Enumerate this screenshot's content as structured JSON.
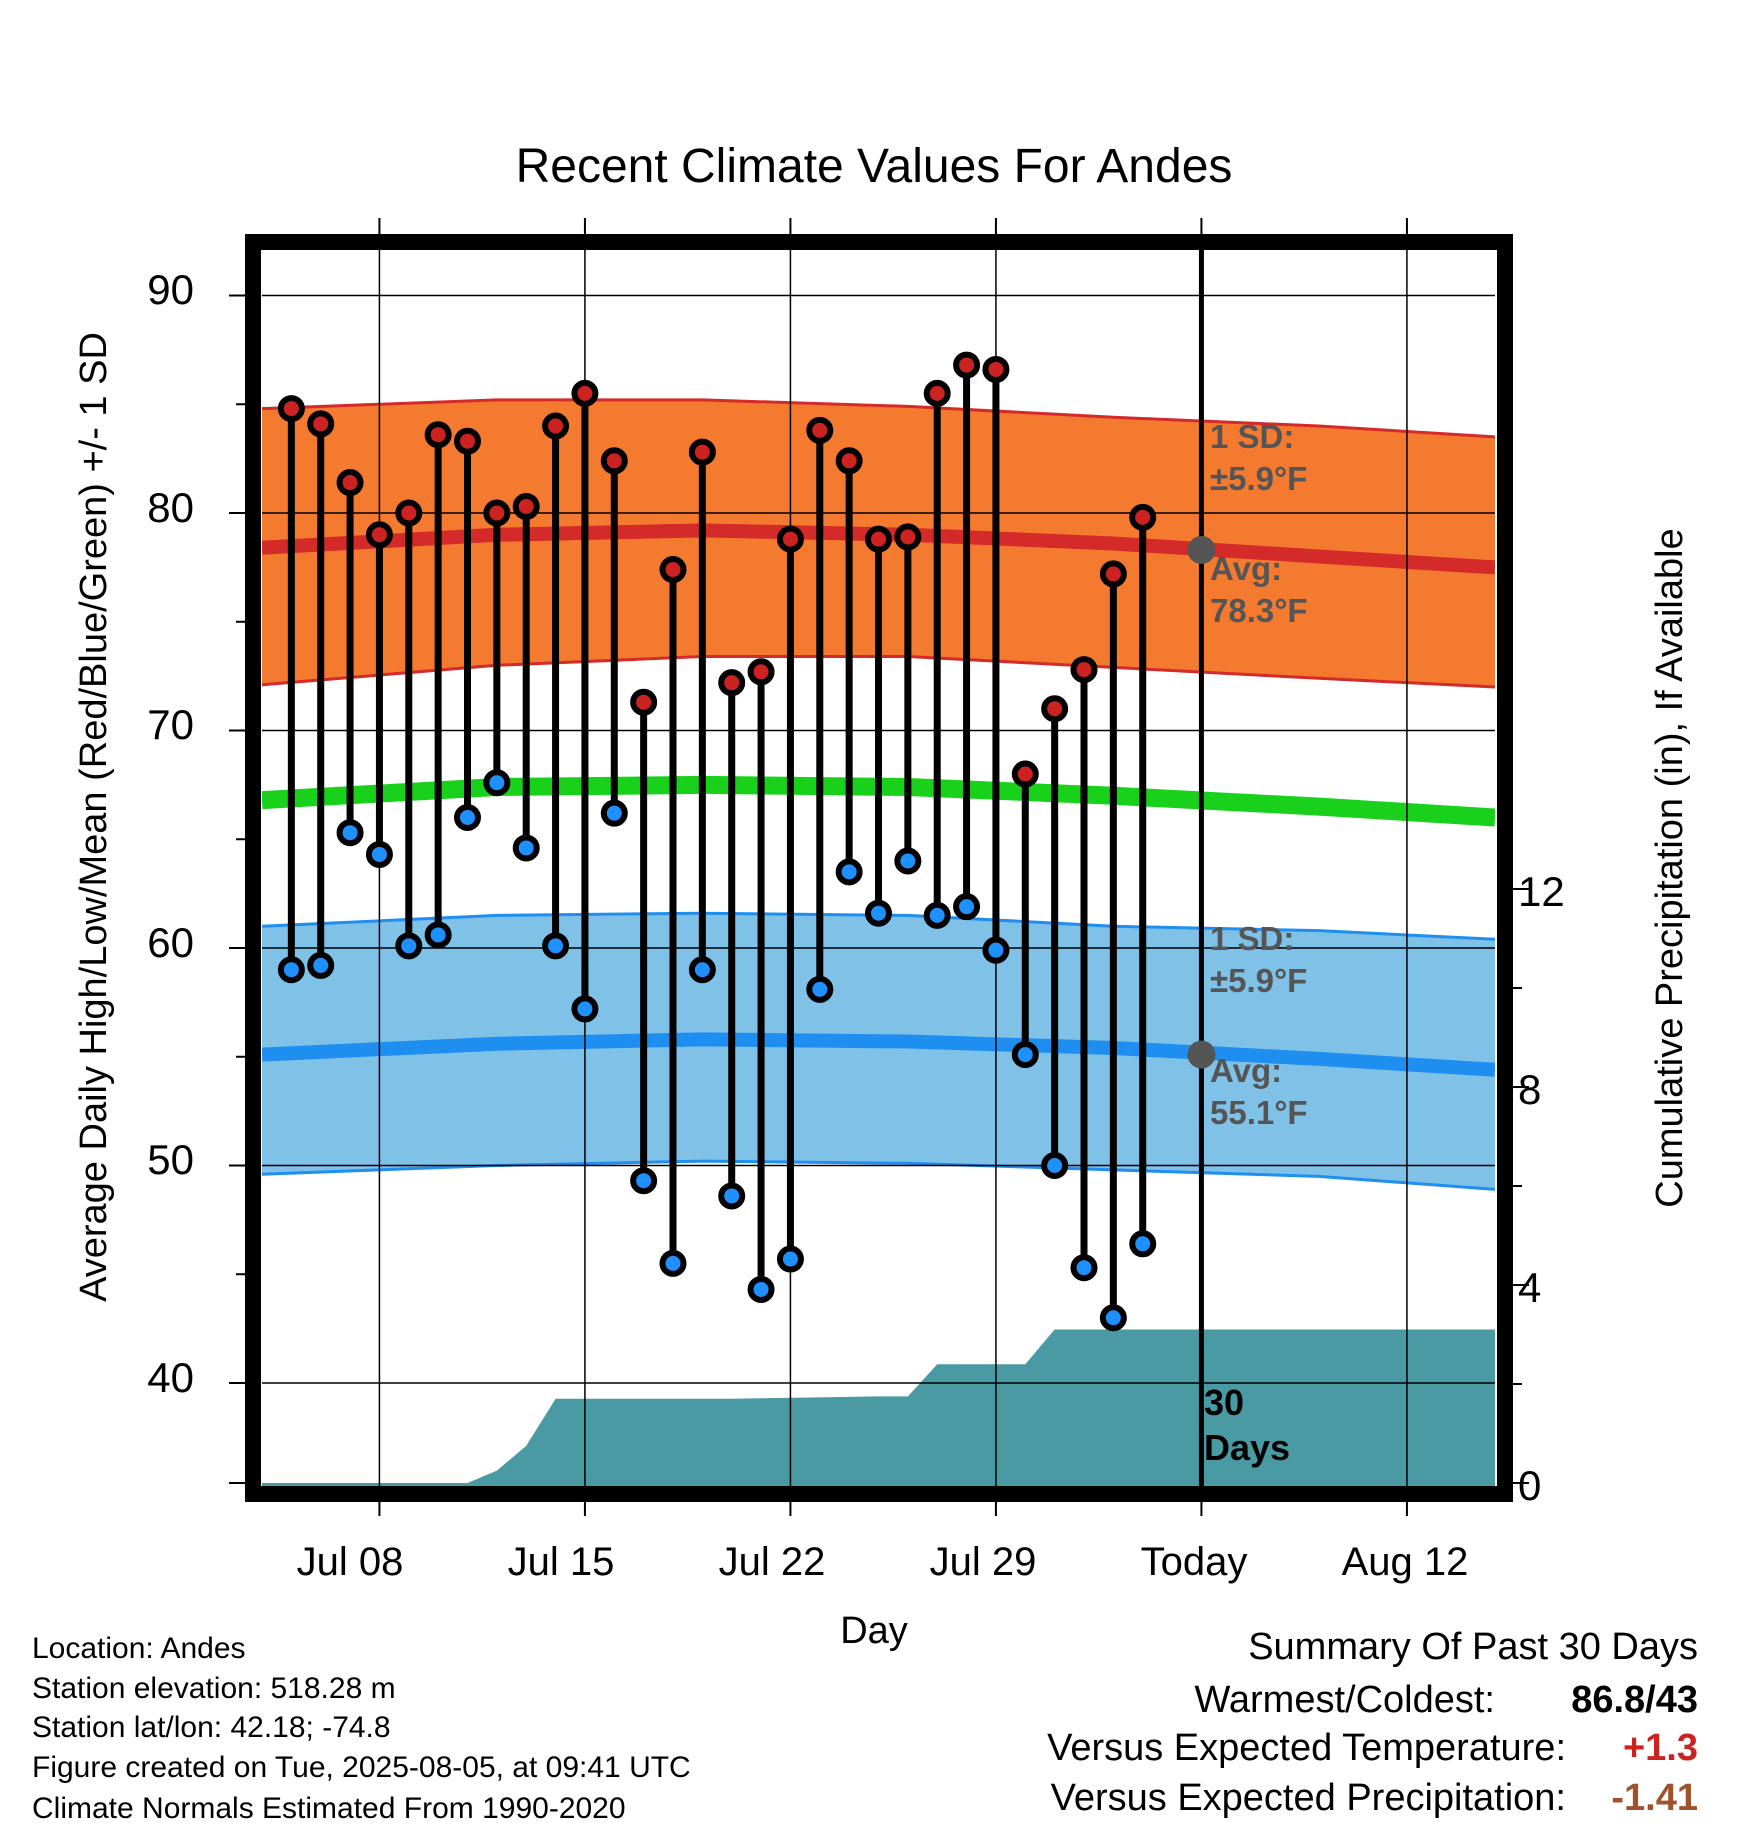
{
  "chart_data": {
    "type": "line",
    "title": "Recent Climate Values For Andes",
    "xlabel": "Day",
    "ylabel": "Average Daily High/Low/Mean (Red/Blue/Green) +/- 1 SD",
    "y2label": "Cumulative Precipitation (in), If Available",
    "yticks": [
      "90",
      "80",
      "70",
      "60",
      "50",
      "40"
    ],
    "ylim": [
      35,
      91
    ],
    "y2ticks": [
      "12",
      "8",
      "4",
      "0"
    ],
    "y2lim": [
      0,
      12
    ],
    "xtick_labels": [
      "Jul 08",
      "Jul 15",
      "Jul 22",
      "Jul 29",
      "Today",
      "Aug 12"
    ],
    "x_days": [
      "Jul 05",
      "Jul 06",
      "Jul 07",
      "Jul 08",
      "Jul 09",
      "Jul 10",
      "Jul 11",
      "Jul 12",
      "Jul 13",
      "Jul 14",
      "Jul 15",
      "Jul 16",
      "Jul 17",
      "Jul 18",
      "Jul 19",
      "Jul 20",
      "Jul 21",
      "Jul 22",
      "Jul 23",
      "Jul 24",
      "Jul 25",
      "Jul 26",
      "Jul 27",
      "Jul 28",
      "Jul 29",
      "Jul 30",
      "Jul 31",
      "Aug 01",
      "Aug 02",
      "Aug 03",
      "Aug 04"
    ],
    "x_range": [
      "Jul 04",
      "Aug 15"
    ],
    "highs": [
      84.8,
      84.1,
      81.4,
      79.0,
      80.0,
      83.6,
      83.3,
      80.0,
      80.3,
      84.0,
      85.5,
      82.4,
      71.3,
      77.4,
      82.8,
      72.2,
      72.7,
      78.8,
      83.8,
      82.4,
      78.8,
      78.9,
      85.5,
      86.8,
      86.6,
      68.0,
      71.0,
      72.8,
      77.2,
      79.8,
      null
    ],
    "lows": [
      59.0,
      59.2,
      65.3,
      64.3,
      60.1,
      60.6,
      66.0,
      67.6,
      64.6,
      60.1,
      57.2,
      66.2,
      49.3,
      45.5,
      59.0,
      48.6,
      44.3,
      45.7,
      58.1,
      63.5,
      61.6,
      64.0,
      61.5,
      61.9,
      59.9,
      55.1,
      50.0,
      45.3,
      43.0,
      46.4,
      null
    ],
    "normals": {
      "x": [
        "Jul 04",
        "Jul 12",
        "Jul 19",
        "Jul 26",
        "Aug 02",
        "Aug 09",
        "Aug 15"
      ],
      "high_avg": [
        78.4,
        79.0,
        79.2,
        79.0,
        78.6,
        78.0,
        77.5
      ],
      "high_upper": [
        84.8,
        85.2,
        85.2,
        84.9,
        84.4,
        84.0,
        83.5
      ],
      "high_lower": [
        72.1,
        73.0,
        73.4,
        73.4,
        72.9,
        72.4,
        72.0
      ],
      "mean_avg": [
        66.8,
        67.4,
        67.5,
        67.4,
        67.0,
        66.5,
        66.0
      ],
      "low_avg": [
        55.1,
        55.6,
        55.8,
        55.7,
        55.4,
        54.9,
        54.4
      ],
      "low_upper": [
        61.0,
        61.5,
        61.6,
        61.5,
        61.0,
        60.8,
        60.4
      ],
      "low_lower": [
        49.6,
        50.0,
        50.2,
        50.1,
        49.8,
        49.5,
        48.9
      ]
    },
    "precip_cumulative": {
      "x": [
        "Jul 04",
        "Jul 07",
        "Jul 08",
        "Jul 09",
        "Jul 10",
        "Jul 11",
        "Jul 12",
        "Jul 13",
        "Jul 14",
        "Jul 15",
        "Jul 20",
        "Jul 25",
        "Jul 26",
        "Jul 27",
        "Jul 30",
        "Jul 31",
        "Aug 15"
      ],
      "values": [
        0,
        0,
        0,
        0,
        0,
        0,
        0.25,
        0.75,
        1.7,
        1.7,
        1.7,
        1.75,
        1.75,
        2.4,
        2.4,
        3.1,
        3.1
      ]
    },
    "today": "Aug 04",
    "today_label_lines": [
      "30",
      "Days"
    ],
    "annotations": {
      "high_sd": [
        "1 SD:",
        "±5.9°F"
      ],
      "high_avg": [
        "Avg:",
        "78.3°F"
      ],
      "low_sd": [
        "1 SD:",
        "±5.9°F"
      ],
      "low_avg": [
        "Avg:",
        "55.1°F"
      ]
    },
    "colors": {
      "high_band": "#f47a30",
      "high_line": "#d42a2a",
      "mean_line": "#19d11b",
      "low_band": "#80c1e8",
      "low_line": "#1e8ff0",
      "precip": "#4a9aa3",
      "high_dot": "#cc2222",
      "low_dot": "#1e90ff",
      "avg_marker": "#555555"
    }
  },
  "footer": {
    "location": "Location: Andes",
    "elevation": "Station elevation: 518.28 m",
    "latlon": "Station lat/lon: 42.18; -74.8",
    "created": "Figure created on Tue, 2025-08-05, at 09:41 UTC",
    "normals": "Climate Normals Estimated From 1990-2020"
  },
  "summary": {
    "title": "Summary Of Past 30 Days",
    "warm_cold_label": "Warmest/Coldest:",
    "warm_cold_value": "86.8/43",
    "temp_label": "Versus Expected Temperature:",
    "temp_value": "+1.3",
    "temp_color": "#cc2222",
    "precip_label": "Versus Expected Precipitation:",
    "precip_value": "-1.41",
    "precip_color": "#a0522d"
  }
}
